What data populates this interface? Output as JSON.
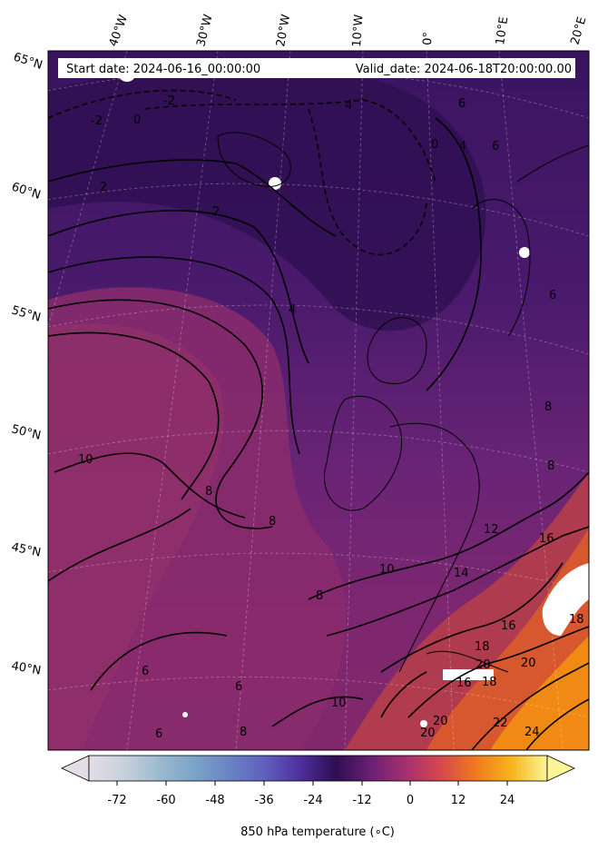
{
  "header": {
    "start_label": "Start date: 2024-06-16_00:00:00",
    "valid_label": "Valid_date: 2024-06-18T20:00:00.00"
  },
  "longitude_labels": [
    "40°W",
    "30°W",
    "20°W",
    "10°W",
    "0°",
    "10°E",
    "20°E"
  ],
  "latitude_labels": [
    "65°N",
    "60°N",
    "55°N",
    "50°N",
    "45°N",
    "40°N"
  ],
  "contour_labels": [
    "-2",
    "-2",
    "0",
    "0",
    "4",
    "4",
    "2",
    "2",
    "6",
    "6",
    "6",
    "8",
    "4",
    "10",
    "8",
    "8",
    "8",
    "8",
    "10",
    "12",
    "14",
    "16",
    "16",
    "18",
    "18",
    "20",
    "20",
    "16",
    "18",
    "20",
    "20",
    "22",
    "24",
    "6",
    "6",
    "6",
    "8",
    "10"
  ],
  "colorbar": {
    "ticks": [
      "-72",
      "-60",
      "-48",
      "-36",
      "-24",
      "-12",
      "0",
      "12",
      "24"
    ],
    "label": "850 hPa temperature (∘C)",
    "stops": [
      "#e3dde6",
      "#c7d1dc",
      "#9cb9cf",
      "#7aa3c8",
      "#6a83c4",
      "#5f5ebd",
      "#4d2f9c",
      "#2f0e52",
      "#6a2072",
      "#a53070",
      "#d6484a",
      "#f07a1e",
      "#f7b51c",
      "#fbf597"
    ]
  },
  "colors": {
    "ocean_cold": "#3a1460",
    "ocean_mid": "#5a2178",
    "ocean_warm": "#8a2a6e",
    "land_warm": "#c54a3a",
    "land_hot": "#ef7a16",
    "contour": "#000000"
  }
}
